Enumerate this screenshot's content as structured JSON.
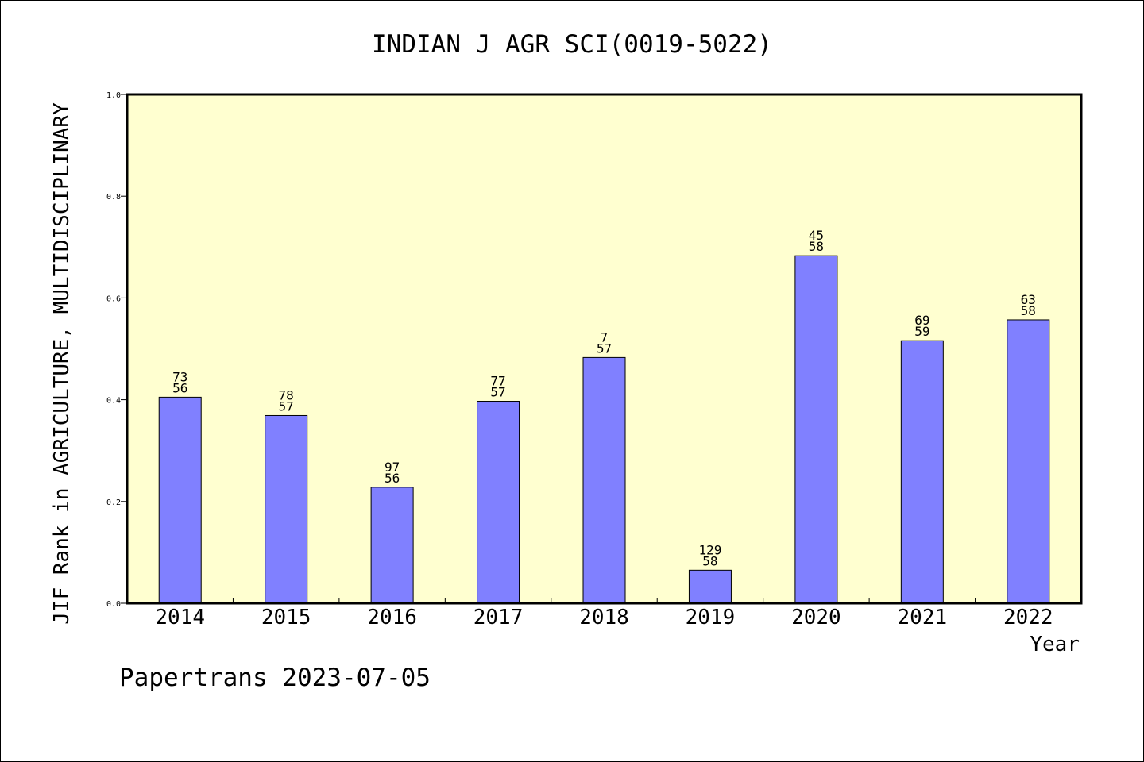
{
  "chart_data": {
    "type": "bar",
    "title": "INDIAN J AGR SCI(0019-5022)",
    "xlabel": "Year",
    "ylabel": "JIF Rank in AGRICULTURE, MULTIDISCIPLINARY",
    "ylim": [
      0,
      1
    ],
    "yticks": [
      "0.0",
      "0.2",
      "0.4",
      "0.6",
      "0.8",
      "1.0"
    ],
    "categories": [
      "2014",
      "2015",
      "2016",
      "2017",
      "2018",
      "2019",
      "2020",
      "2021",
      "2022"
    ],
    "values": [
      0.405,
      0.369,
      0.228,
      0.397,
      0.483,
      0.065,
      0.683,
      0.516,
      0.557
    ],
    "rank_labels": [
      "73",
      "78",
      "97",
      "77",
      "7",
      "129",
      "45",
      "69",
      "63"
    ],
    "total_labels": [
      "56",
      "57",
      "56",
      "57",
      "57",
      "58",
      "58",
      "59",
      "58"
    ],
    "grid": false,
    "legend": false,
    "colors": {
      "bar": "#8080ff",
      "plot_background": "#ffffd0",
      "axis": "#000000"
    }
  },
  "footer": "Papertrans 2023-07-05"
}
